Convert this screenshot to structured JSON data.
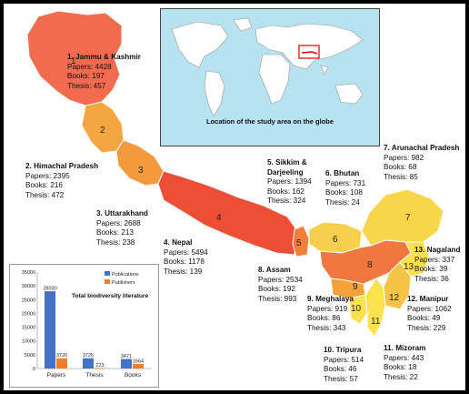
{
  "inset_caption": "Location of the study area on the globe",
  "regions": [
    {
      "id": "jk",
      "title": "1. Jammu & Kashmir",
      "papers": "Papers: 4428",
      "books": "Books: 197",
      "thesis": "Thesis: 457",
      "color": "#f26b4f"
    },
    {
      "id": "hp",
      "title": "2. Himachal Pradesh",
      "papers": "Papers: 2395",
      "books": "Books: 216",
      "thesis": "Thesis:  472",
      "color": "#f4a640"
    },
    {
      "id": "uk",
      "title": "3. Uttarakhand",
      "papers": "Papers: 2688",
      "books": "Books: 213",
      "thesis": "Thesis: 238",
      "color": "#f39a3e"
    },
    {
      "id": "np",
      "title": "4. Nepal",
      "papers": "Papers: 5494",
      "books": "Books: 1178",
      "thesis": "Thesis: 139",
      "color": "#ee4e36"
    },
    {
      "id": "sk",
      "title": "5. Sikkim & Darjeeling",
      "papers": "Papers: 1394",
      "books": "Books: 162",
      "thesis": "Thesis: 324",
      "color": "#f27e3c"
    },
    {
      "id": "bt",
      "title": "6. Bhutan",
      "papers": "Papers: 731",
      "books": "Books: 108",
      "thesis": "Thesis: 24",
      "color": "#f8cf4c"
    },
    {
      "id": "ar",
      "title": "7. Arunachal Pradesh",
      "papers": "Papers: 982",
      "books": "Books: 68",
      "thesis": "Thesis: 85",
      "color": "#f7d64a"
    },
    {
      "id": "as",
      "title": "8. Assam",
      "papers": "Papers: 2534",
      "books": "Books: 192",
      "thesis": "Thesis: 993",
      "color": "#f0773f"
    },
    {
      "id": "mg",
      "title": "9. Meghalaya",
      "papers": "Papers: 919",
      "books": "Books: 86",
      "thesis": "Thesis: 343",
      "color": "#f6a23a"
    },
    {
      "id": "tr",
      "title": "10. Tripura",
      "papers": "Papers: 514",
      "books": "Books: 46",
      "thesis": "Thesis: 57",
      "color": "#fbe34f"
    },
    {
      "id": "mz",
      "title": "11. Mizoram",
      "papers": "Papers: 443",
      "books": "Books: 18",
      "thesis": "Thesis: 22",
      "color": "#fbe34f"
    },
    {
      "id": "mn",
      "title": "12. Manipur",
      "papers": "Papers: 1062",
      "books": "Books: 49",
      "thesis": "Thesis: 229",
      "color": "#f6c444"
    },
    {
      "id": "nl",
      "title": "13. Nagaland",
      "papers": "Papers: 337",
      "books": "Books: 39",
      "thesis": "Thesis: 36",
      "color": "#f9e04c"
    }
  ],
  "region_numbers": [
    "1",
    "2",
    "3",
    "4",
    "5",
    "6",
    "7",
    "8",
    "9",
    "10",
    "11",
    "12",
    "13"
  ],
  "chart_data": {
    "type": "bar",
    "title": "Total biodiversity literature",
    "categories": [
      "Papers",
      "Thesis",
      "Books"
    ],
    "series": [
      {
        "name": "Publications",
        "values": [
          28030,
          3725,
          3471
        ],
        "color": "#4472c4"
      },
      {
        "name": "Publishers",
        "values": [
          3720,
          223,
          1664
        ],
        "color": "#ed7d31"
      }
    ],
    "ylim": [
      0,
      35000
    ],
    "yticks": [
      "0",
      "5000",
      "10000",
      "15000",
      "20000",
      "25000",
      "30000",
      "35000"
    ],
    "legend": "top-right"
  }
}
